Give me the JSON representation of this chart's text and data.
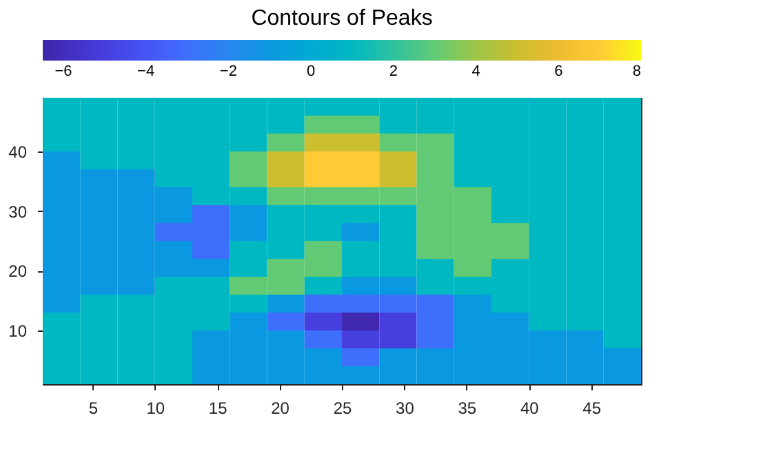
{
  "chart_data": {
    "type": "heatmap",
    "title": "Contours of Peaks",
    "x": [
      2.5,
      5.5,
      8.5,
      11.5,
      14.5,
      17.5,
      20.5,
      23.5,
      26.5,
      29.5,
      32.5,
      35.5,
      38.5,
      41.5,
      44.5,
      47.5
    ],
    "y": [
      47.5,
      44.5,
      41.5,
      38.5,
      35.5,
      32.5,
      29.5,
      26.5,
      23.5,
      20.5,
      17.5,
      14.5,
      11.5,
      8.5,
      5.5,
      2.5
    ],
    "cells": [
      [
        1,
        1,
        1,
        1,
        1,
        1,
        1,
        1,
        1,
        1,
        1,
        1,
        1,
        1,
        1,
        1
      ],
      [
        1,
        1,
        1,
        1,
        1,
        1,
        1,
        3,
        3,
        1,
        1,
        1,
        1,
        1,
        1,
        1
      ],
      [
        1,
        1,
        1,
        1,
        1,
        1,
        3,
        5,
        5,
        3,
        3,
        1,
        1,
        1,
        1,
        1
      ],
      [
        -1,
        1,
        1,
        1,
        1,
        3,
        5,
        7,
        7,
        5,
        3,
        1,
        1,
        1,
        1,
        1
      ],
      [
        -1,
        -1,
        -1,
        1,
        1,
        3,
        5,
        7,
        7,
        5,
        3,
        1,
        1,
        1,
        1,
        1
      ],
      [
        -1,
        -1,
        -1,
        -1,
        1,
        1,
        3,
        3,
        3,
        3,
        3,
        3,
        1,
        1,
        1,
        1
      ],
      [
        -1,
        -1,
        -1,
        -1,
        -3,
        -1,
        1,
        1,
        1,
        1,
        3,
        3,
        1,
        1,
        1,
        1
      ],
      [
        -1,
        -1,
        -1,
        -3,
        -3,
        -1,
        1,
        1,
        -1,
        1,
        3,
        3,
        3,
        1,
        1,
        1
      ],
      [
        -1,
        -1,
        -1,
        -1,
        -3,
        1,
        1,
        3,
        1,
        1,
        3,
        3,
        3,
        1,
        1,
        1
      ],
      [
        -1,
        -1,
        -1,
        -1,
        -1,
        1,
        3,
        3,
        1,
        1,
        1,
        3,
        1,
        1,
        1,
        1
      ],
      [
        -1,
        -1,
        -1,
        1,
        1,
        3,
        3,
        1,
        -1,
        -1,
        1,
        1,
        1,
        1,
        1,
        1
      ],
      [
        -1,
        1,
        1,
        1,
        1,
        1,
        -1,
        -3,
        -3,
        -3,
        -3,
        -1,
        1,
        1,
        1,
        1
      ],
      [
        1,
        1,
        1,
        1,
        1,
        -1,
        -3,
        -5,
        -6.3,
        -5,
        -3,
        -1,
        -1,
        1,
        1,
        1
      ],
      [
        1,
        1,
        1,
        1,
        -1,
        -1,
        -1,
        -3,
        -5,
        -5,
        -3,
        -1,
        -1,
        -1,
        -1,
        1
      ],
      [
        1,
        1,
        1,
        1,
        -1,
        -1,
        -1,
        -1,
        -3,
        -1,
        -1,
        -1,
        -1,
        -1,
        -1,
        -1
      ],
      [
        1,
        1,
        1,
        1,
        -1,
        -1,
        -1,
        -1,
        -1,
        -1,
        -1,
        -1,
        -1,
        -1,
        -1,
        -1
      ]
    ],
    "xlim": [
      1,
      49
    ],
    "xticks": [
      5,
      10,
      15,
      20,
      25,
      30,
      35,
      40,
      45
    ],
    "ylim": [
      1,
      49
    ],
    "yticks": [
      10,
      20,
      30,
      40
    ],
    "clim": [
      -6.5,
      8
    ],
    "cticks": [
      -6,
      -4,
      -2,
      0,
      2,
      4,
      6,
      8
    ],
    "grid": false
  }
}
